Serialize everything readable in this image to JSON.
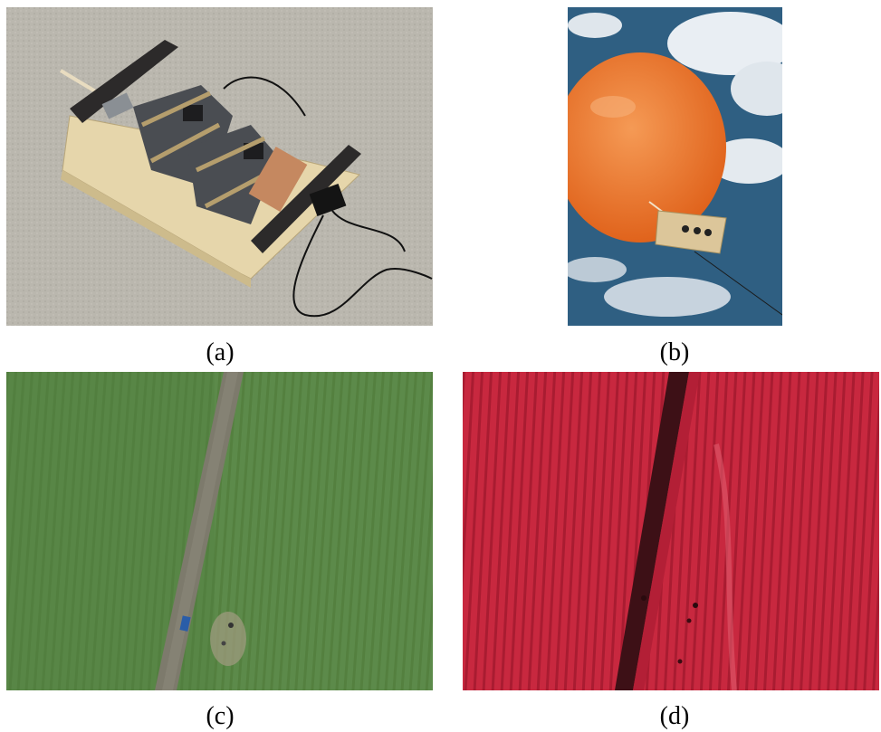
{
  "figure": {
    "panels": [
      {
        "id": "a",
        "caption": "(a)",
        "content": "wooden-payload-box-with-cameras"
      },
      {
        "id": "b",
        "caption": "(b)",
        "content": "orange-balloon-with-payload-in-sky"
      },
      {
        "id": "c",
        "caption": "(c)",
        "content": "aerial-rgb-field-with-road"
      },
      {
        "id": "d",
        "caption": "(d)",
        "content": "aerial-near-infrared-field"
      }
    ]
  },
  "colors": {
    "floor": "#b9b6ad",
    "wood": "#e3d2a6",
    "camera": "#4a4d52",
    "balloon": "#f07a2e",
    "sky": "#2f5f82",
    "field_green": "#5c8a4a",
    "road": "#7d7a6c",
    "field_red": "#c8283f"
  }
}
